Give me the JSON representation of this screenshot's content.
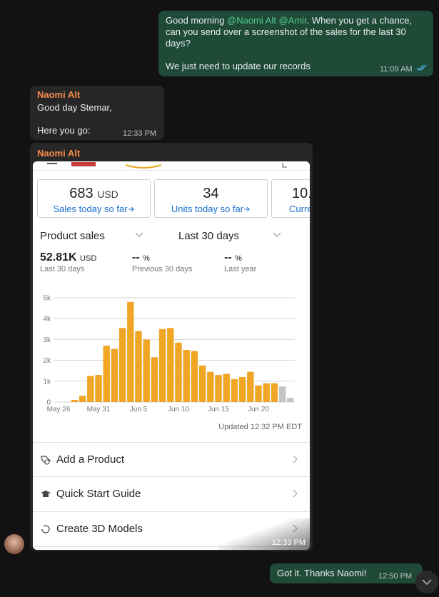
{
  "messages": [
    {
      "parts": [
        "Good morning",
        "@Naomi Alt",
        "@Amir",
        ". When you get a chance, can you send over a screenshot of the sales for the last 30 days?"
      ],
      "line2": "We just need to update our records",
      "time": "11:09 AM"
    },
    {
      "sender": "Naomi Alt",
      "lines": [
        "Good day Stemar,",
        "Here you go:"
      ],
      "time": "12:33 PM"
    },
    {
      "sender": "Naomi Alt",
      "time": "12:33 PM"
    },
    {
      "text": "Got it. Thanks Naomi!",
      "time": "12:50 PM"
    }
  ],
  "screenshot": {
    "cards": [
      {
        "value": "683",
        "unit": "USD",
        "link": "Sales today so far"
      },
      {
        "value": "34",
        "link": "Units today so far"
      },
      {
        "value": "10.",
        "link": "Curre"
      }
    ],
    "selectors": [
      "Product sales",
      "Last 30 days"
    ],
    "stats": [
      {
        "value": "52.81K",
        "unit": "USD",
        "label": "Last 30 days"
      },
      {
        "value": "--",
        "unit": "%",
        "label": "Previous 30 days"
      },
      {
        "value": "--",
        "unit": "%",
        "label": "Last year"
      }
    ],
    "updated": "Updated 12:32 PM EDT",
    "menu": [
      "Add a Product",
      "Quick Start Guide",
      "Create 3D Models"
    ]
  },
  "chart_data": {
    "type": "bar",
    "categories": [
      "May 26",
      null,
      null,
      null,
      null,
      "May 31",
      null,
      null,
      null,
      null,
      "Jun 5",
      null,
      null,
      null,
      null,
      "Jun 10",
      null,
      null,
      null,
      null,
      "Jun 15",
      null,
      null,
      null,
      null,
      "Jun 20",
      null,
      null,
      null,
      null
    ],
    "series": [
      {
        "values": [
          0,
          0,
          100,
          300,
          1250,
          1300,
          2700,
          2550,
          3550,
          4800,
          3400,
          3000,
          2150,
          3500,
          3550,
          2850,
          2500,
          2450,
          1750,
          1450,
          1300,
          1350,
          1100,
          1200,
          1450,
          800,
          900,
          900,
          750,
          200
        ],
        "colors": [
          "#f0a524",
          "#f0a524",
          "#f0a524",
          "#f0a524",
          "#f0a524",
          "#f0a524",
          "#f0a524",
          "#f0a524",
          "#f0a524",
          "#f0a524",
          "#f0a524",
          "#f0a524",
          "#f0a524",
          "#f0a524",
          "#f0a524",
          "#f0a524",
          "#f0a524",
          "#f0a524",
          "#f0a524",
          "#f0a524",
          "#f0a524",
          "#f0a524",
          "#f0a524",
          "#f0a524",
          "#f0a524",
          "#f0a524",
          "#f0a524",
          "#f0a524",
          "#c4c4c4",
          "#c4c4c4"
        ]
      }
    ],
    "ylim": [
      0,
      5000
    ],
    "yticks": [
      0,
      {
        "value": 1000,
        "label": "1k"
      },
      {
        "value": 2000,
        "label": "2k"
      },
      {
        "value": 3000,
        "label": "3k"
      },
      {
        "value": 4000,
        "label": "4k"
      },
      {
        "value": 5000,
        "label": "5k"
      }
    ],
    "grid": true
  }
}
